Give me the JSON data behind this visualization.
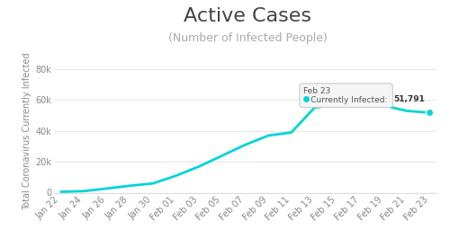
{
  "title": "Active Cases",
  "subtitle": "(Number of Infected People)",
  "ylabel": "Total Coronavirus Currently Infected",
  "line_color": "#00d4d8",
  "background_color": "#ffffff",
  "legend_label": "Currently Infected",
  "tooltip_date": "Feb 23",
  "tooltip_label": "Currently Infected:",
  "tooltip_value": "51,791",
  "ylim": [
    0,
    80000
  ],
  "yticks": [
    0,
    20000,
    40000,
    60000,
    80000
  ],
  "ytick_labels": [
    "0",
    "20k",
    "40k",
    "60k",
    "80k"
  ],
  "dates": [
    "Jan 22",
    "Jan 24",
    "Jan 26",
    "Jan 28",
    "Jan 30",
    "Feb 01",
    "Feb 03",
    "Feb 05",
    "Feb 07",
    "Feb 09",
    "Feb 11",
    "Feb 13",
    "Feb 15",
    "Feb 17",
    "Feb 19",
    "Feb 21",
    "Feb 23"
  ],
  "values": [
    580,
    1000,
    2700,
    4500,
    6000,
    11000,
    17000,
    24000,
    31000,
    37000,
    39000,
    55000,
    57500,
    57000,
    56500,
    53000,
    51791
  ],
  "title_fontsize": 16,
  "subtitle_fontsize": 9,
  "ylabel_fontsize": 7,
  "tick_fontsize": 7,
  "legend_fontsize": 8
}
